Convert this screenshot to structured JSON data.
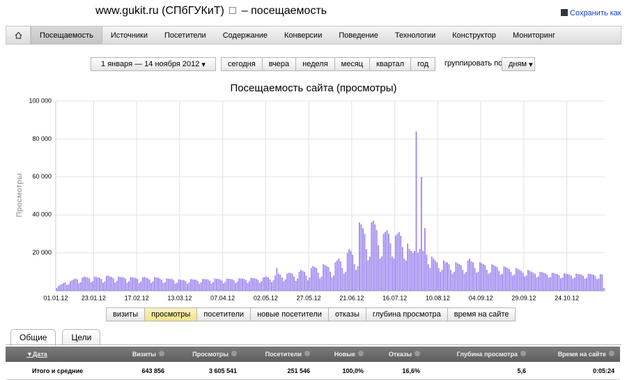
{
  "header": {
    "site": "www.gukit.ru (СПбГУКиТ)",
    "title": "– посещаемость",
    "save": "Сохранить как"
  },
  "nav": [
    "Посещаемость",
    "Источники",
    "Посетители",
    "Содержание",
    "Конверсии",
    "Поведение",
    "Технологии",
    "Конструктор",
    "Мониторинг"
  ],
  "toolbar": {
    "date_range": "1 января — 14 ноября 2012",
    "periods": [
      "сегодня",
      "вчера",
      "неделя",
      "месяц",
      "квартал",
      "год"
    ],
    "group_label": "группировать по",
    "group_value": "дням"
  },
  "chart_data": {
    "type": "bar",
    "title": "Посещаемость сайта (просмотры)",
    "y_label": "Просмотры",
    "color": "#a58ff0",
    "grid": true,
    "ylim": [
      0,
      100000
    ],
    "yticks": [
      {
        "value": 20000,
        "label": "20 000"
      },
      {
        "value": 40000,
        "label": "40 000"
      },
      {
        "value": 60000,
        "label": "60 000"
      },
      {
        "value": 80000,
        "label": "80 000"
      },
      {
        "value": 100000,
        "label": "100 000"
      }
    ],
    "categories": [
      "01.01.12",
      null,
      null,
      null,
      null,
      null,
      null,
      null,
      null,
      null,
      null,
      null,
      null,
      null,
      null,
      null,
      null,
      null,
      null,
      null,
      null,
      null,
      "23.01.12",
      null,
      null,
      null,
      null,
      null,
      null,
      null,
      null,
      null,
      null,
      null,
      null,
      null,
      null,
      null,
      null,
      null,
      null,
      null,
      null,
      null,
      null,
      null,
      null,
      "17.02.12",
      null,
      null,
      null,
      null,
      null,
      null,
      null,
      null,
      null,
      null,
      null,
      null,
      null,
      null,
      null,
      null,
      null,
      null,
      null,
      null,
      null,
      null,
      null,
      null,
      "13.03.12",
      null,
      null,
      null,
      null,
      null,
      null,
      null,
      null,
      null,
      null,
      null,
      null,
      null,
      null,
      null,
      null,
      null,
      null,
      null,
      null,
      null,
      null,
      null,
      null,
      "07.04.12",
      null,
      null,
      null,
      null,
      null,
      null,
      null,
      null,
      null,
      null,
      null,
      null,
      null,
      null,
      null,
      null,
      null,
      null,
      null,
      null,
      null,
      null,
      null,
      null,
      "02.05.12",
      null,
      null,
      null,
      null,
      null,
      null,
      null,
      null,
      null,
      null,
      null,
      null,
      null,
      null,
      null,
      null,
      null,
      null,
      null,
      null,
      null,
      null,
      null,
      null,
      "27.05.12",
      null,
      null,
      null,
      null,
      null,
      null,
      null,
      null,
      null,
      null,
      null,
      null,
      null,
      null,
      null,
      null,
      null,
      null,
      null,
      null,
      null,
      null,
      null,
      null,
      "21.06.12",
      null,
      null,
      null,
      null,
      null,
      null,
      null,
      null,
      null,
      null,
      null,
      null,
      null,
      null,
      null,
      null,
      null,
      null,
      null,
      null,
      null,
      null,
      null,
      null,
      "16.07.12",
      null,
      null,
      null,
      null,
      null,
      null,
      null,
      null,
      null,
      null,
      null,
      null,
      null,
      null,
      null,
      null,
      null,
      null,
      null,
      null,
      null,
      null,
      null,
      null,
      "10.08.12",
      null,
      null,
      null,
      null,
      null,
      null,
      null,
      null,
      null,
      null,
      null,
      null,
      null,
      null,
      null,
      null,
      null,
      null,
      null,
      null,
      null,
      null,
      null,
      null,
      "04.09.12",
      null,
      null,
      null,
      null,
      null,
      null,
      null,
      null,
      null,
      null,
      null,
      null,
      null,
      null,
      null,
      null,
      null,
      null,
      null,
      null,
      null,
      null,
      null,
      null,
      "29.09.12",
      null,
      null,
      null,
      null,
      null,
      null,
      null,
      null,
      null,
      null,
      null,
      null,
      null,
      null,
      null,
      null,
      null,
      null,
      null,
      null,
      null,
      null,
      null,
      null,
      "24.10.12",
      null,
      null,
      null,
      null,
      null,
      null,
      null,
      null,
      null,
      null,
      null,
      null,
      null,
      null,
      null,
      null,
      null,
      null,
      null,
      null,
      null
    ],
    "values": [
      1500,
      2500,
      3000,
      3500,
      4000,
      4500,
      3000,
      3500,
      5000,
      5500,
      6000,
      6500,
      6000,
      4000,
      4500,
      7000,
      7500,
      7200,
      7000,
      6500,
      4500,
      5000,
      7500,
      7200,
      7000,
      6800,
      6200,
      4200,
      5000,
      7800,
      8000,
      7500,
      7300,
      6500,
      4300,
      5200,
      7500,
      7300,
      7100,
      7000,
      6400,
      4200,
      5000,
      7200,
      7000,
      6900,
      6800,
      6200,
      4000,
      4800,
      7000,
      7300,
      6800,
      6700,
      6000,
      4100,
      4900,
      7100,
      7000,
      6900,
      6500,
      5800,
      4000,
      4500,
      6500,
      6400,
      6300,
      6200,
      5500,
      3800,
      4200,
      6000,
      5800,
      5700,
      5600,
      5000,
      3600,
      4300,
      6200,
      6000,
      5900,
      5800,
      5200,
      3700,
      4500,
      6300,
      6200,
      6100,
      6000,
      5300,
      3800,
      4600,
      6500,
      6300,
      6200,
      6000,
      5400,
      3900,
      4700,
      6400,
      6300,
      6200,
      6100,
      5500,
      4000,
      4800,
      6600,
      6500,
      6400,
      6200,
      5600,
      4100,
      4900,
      6800,
      6700,
      6500,
      6300,
      5700,
      4200,
      5000,
      7000,
      7200,
      7400,
      7000,
      6000,
      4500,
      5500,
      8000,
      12000,
      9000,
      8500,
      7000,
      5000,
      6000,
      9000,
      9500,
      9300,
      9000,
      7500,
      5200,
      6500,
      10000,
      11000,
      10500,
      10000,
      8000,
      5500,
      7000,
      12000,
      13000,
      12500,
      12000,
      9500,
      6500,
      7500,
      14000,
      13500,
      13000,
      12500,
      10000,
      7000,
      8000,
      15000,
      16000,
      17000,
      15500,
      12000,
      9000,
      10000,
      20000,
      22000,
      21000,
      19000,
      14000,
      11000,
      13000,
      36000,
      35000,
      33000,
      30000,
      22000,
      16000,
      18000,
      36000,
      37000,
      35000,
      32000,
      24000,
      17000,
      18000,
      30000,
      31000,
      32000,
      30000,
      25000,
      18000,
      17000,
      29000,
      30000,
      31000,
      29000,
      23000,
      17000,
      16000,
      25000,
      22000,
      21000,
      20000,
      21000,
      84000,
      20000,
      22000,
      60000,
      21000,
      33000,
      19000,
      14000,
      12000,
      18000,
      17000,
      16000,
      15000,
      12000,
      10000,
      11000,
      16000,
      15000,
      15000,
      14000,
      11000,
      9000,
      10000,
      15000,
      14500,
      14000,
      13500,
      11000,
      9000,
      10000,
      16000,
      17000,
      15500,
      15000,
      12000,
      9500,
      10000,
      15000,
      14500,
      14000,
      13500,
      11000,
      9000,
      9500,
      14000,
      13500,
      13000,
      12500,
      10500,
      8500,
      9000,
      13000,
      12500,
      12000,
      11500,
      10000,
      8000,
      8500,
      12000,
      11500,
      11000,
      10500,
      9500,
      7500,
      8000,
      11000,
      10500,
      10000,
      9500,
      9000,
      7000,
      7500,
      10000,
      9800,
      9500,
      9200,
      8500,
      6800,
      7200,
      9500,
      9300,
      9000,
      8800,
      8200,
      6500,
      7000,
      9200,
      9000,
      8800,
      8600,
      8000,
      6400,
      7000,
      9000,
      8800,
      8600,
      8500,
      7900,
      6300,
      6800,
      9000,
      8900,
      8700,
      8500,
      7800,
      6200,
      6500,
      8800,
      8600,
      1500
    ]
  },
  "metric_buttons": [
    "визиты",
    "просмотры",
    "посетители",
    "новые посетители",
    "отказы",
    "глубина просмотра",
    "время на сайте"
  ],
  "tabs": [
    "Общие",
    "Цели"
  ],
  "table": {
    "headers": [
      "Дата",
      "Визиты",
      "Просмотры",
      "Посетители",
      "Новые",
      "Отказы",
      "Глубина просмотра",
      "Время на сайте"
    ],
    "rows": [
      [
        "Итого и средние",
        "643 856",
        "3 605 541",
        "251 546",
        "100,0%",
        "16,6%",
        "5,6",
        "0:05:24"
      ]
    ]
  }
}
